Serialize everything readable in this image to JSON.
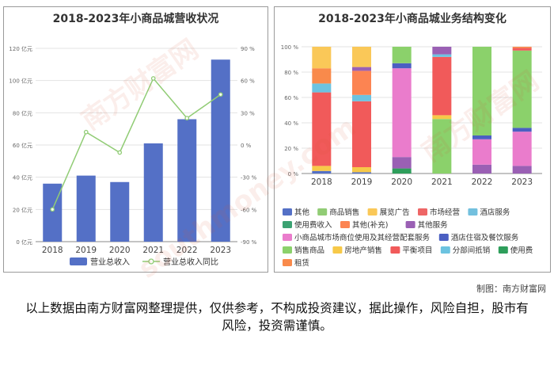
{
  "colors": {
    "revenue_bar": "#5470c6",
    "yoy_line": "#91cc75",
    "其他": "#5470c6",
    "商品销售": "#91cc75",
    "展览广告": "#fac858",
    "市场经营": "#ee6666",
    "酒店服务": "#73c0de",
    "使用费收入": "#3ba272",
    "其他(补充)": "#fc8452",
    "其他服务": "#9a60b4",
    "小商品城市场商位使用及其经营配套服务": "#ea7ccc",
    "酒店住宿及餐饮服务": "#4b5fc2",
    "销售商品": "#8bd16b",
    "房地产销售": "#f7c948",
    "平衡项目": "#f15a5a",
    "分部间抵销": "#6cc3e0",
    "使用费": "#2e9e5b",
    "租赁": "#f98a4b"
  },
  "chart_data": [
    {
      "type": "bar",
      "title": "2018-2023年小商品城营收状况",
      "categories": [
        "2018",
        "2019",
        "2020",
        "2021",
        "2022",
        "2023"
      ],
      "series": [
        {
          "name": "营业总收入",
          "type": "bar",
          "axis": "left",
          "values": [
            36,
            41,
            37,
            61,
            76,
            113
          ]
        },
        {
          "name": "营业总收入同比",
          "type": "line",
          "axis": "right",
          "values": [
            -60,
            12,
            -7,
            62,
            25,
            47
          ]
        }
      ],
      "y_left_ticks": [
        "0 亿元",
        "20 亿元",
        "40 亿元",
        "60 亿元",
        "80 亿元",
        "100 亿元",
        "120 亿元"
      ],
      "y_right_ticks": [
        "-90 %",
        "-60 %",
        "-30 %",
        "0 %",
        "30 %",
        "60 %",
        "90 %"
      ],
      "ylim_left": [
        0,
        120
      ],
      "ylim_right": [
        -90,
        90
      ],
      "grid": true,
      "legend_position": "bottom"
    },
    {
      "type": "bar",
      "stacked": "percent",
      "title": "2018-2023年小商品城业务结构变化",
      "categories": [
        "2018",
        "2019",
        "2020",
        "2021",
        "2022",
        "2023"
      ],
      "y_ticks": [
        "0 %",
        "20 %",
        "40 %",
        "60 %",
        "80 %",
        "100 %"
      ],
      "ylim": [
        0,
        100
      ],
      "grid": true,
      "legend_position": "bottom",
      "legend": [
        "其他",
        "商品销售",
        "展览广告",
        "市场经营",
        "酒店服务",
        "使用费收入",
        "其他(补充)",
        "其他服务",
        "小商品城市场商位使用及其经营配套服务",
        "酒店住宿及餐饮服务",
        "销售商品",
        "房地产销售",
        "平衡项目",
        "分部间抵销",
        "使用费",
        "租赁"
      ],
      "bars": [
        {
          "year": "2018",
          "segments": [
            {
              "name": "其他",
              "value": 2
            },
            {
              "name": "房地产销售",
              "value": 4
            },
            {
              "name": "平衡项目",
              "value": 58
            },
            {
              "name": "分部间抵销",
              "value": 7
            },
            {
              "name": "租赁",
              "value": 12
            },
            {
              "name": "展览广告",
              "value": 17
            }
          ]
        },
        {
          "year": "2019",
          "segments": [
            {
              "name": "其他",
              "value": 1
            },
            {
              "name": "房地产销售",
              "value": 4
            },
            {
              "name": "平衡项目",
              "value": 52
            },
            {
              "name": "分部间抵销",
              "value": 5
            },
            {
              "name": "其他(补充)",
              "value": 19
            },
            {
              "name": "其他服务",
              "value": 3
            },
            {
              "name": "展览广告",
              "value": 16
            }
          ]
        },
        {
          "year": "2020",
          "segments": [
            {
              "name": "使用费",
              "value": 4
            },
            {
              "name": "其他服务",
              "value": 9
            },
            {
              "name": "小商品城市场商位使用及其经营配套服务",
              "value": 70
            },
            {
              "name": "酒店住宿及餐饮服务",
              "value": 4
            },
            {
              "name": "销售商品",
              "value": 13
            }
          ]
        },
        {
          "year": "2021",
          "segments": [
            {
              "name": "销售商品",
              "value": 43
            },
            {
              "name": "房地产销售",
              "value": 3
            },
            {
              "name": "平衡项目",
              "value": 46
            },
            {
              "name": "分部间抵销",
              "value": 2
            },
            {
              "name": "其他服务",
              "value": 6
            }
          ]
        },
        {
          "year": "2022",
          "segments": [
            {
              "name": "其他服务",
              "value": 7
            },
            {
              "name": "小商品城市场商位使用及其经营配套服务",
              "value": 20
            },
            {
              "name": "酒店住宿及餐饮服务",
              "value": 3
            },
            {
              "name": "销售商品",
              "value": 70
            }
          ]
        },
        {
          "year": "2023",
          "segments": [
            {
              "name": "其他服务",
              "value": 6
            },
            {
              "name": "小商品城市场商位使用及其经营配套服务",
              "value": 27
            },
            {
              "name": "酒店住宿及餐饮服务",
              "value": 3
            },
            {
              "name": "销售商品",
              "value": 61
            },
            {
              "name": "平衡项目",
              "value": 2
            },
            {
              "name": "租赁",
              "value": 1
            }
          ]
        }
      ]
    }
  ],
  "footer": {
    "credit": "制图：南方财富网",
    "disclaimer": "以上数据由南方财富网整理提供，仅供参考，不构成投资建议，据此操作，风险自担，股市有风险，投资需谨慎。"
  },
  "watermark": {
    "text": "南方财富网",
    "latin": "southmoney.com"
  }
}
